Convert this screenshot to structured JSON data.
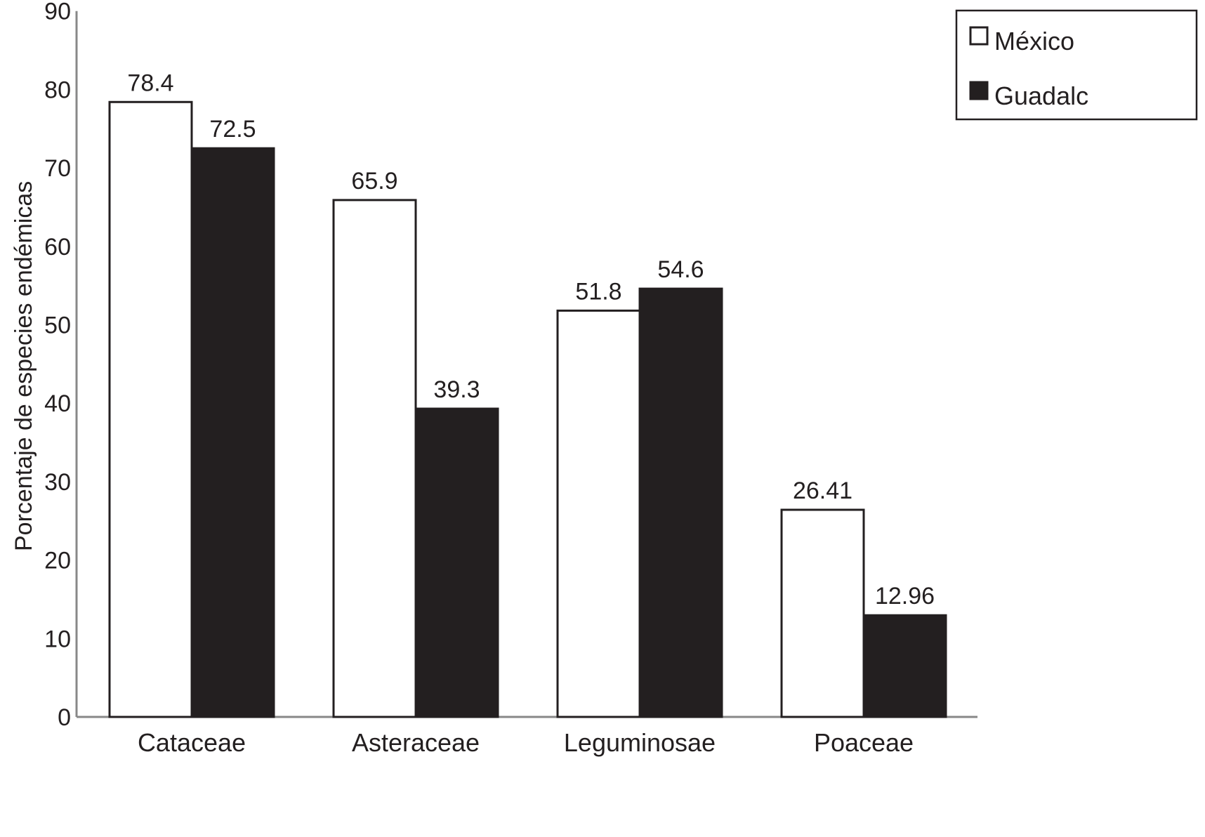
{
  "chart_data": {
    "type": "bar",
    "title": "",
    "xlabel": "",
    "ylabel": "Porcentaje de especies endémicas",
    "ylim": [
      0,
      90
    ],
    "yticks": [
      0,
      10,
      20,
      30,
      40,
      50,
      60,
      70,
      80,
      90
    ],
    "categories": [
      "Cataceae",
      "Asteraceae",
      "Leguminosae",
      "Poaceae"
    ],
    "series": [
      {
        "name": "México",
        "values": [
          78.4,
          65.9,
          51.8,
          26.41
        ],
        "labels": [
          "78.4",
          "65.9",
          "51.8",
          "26.41"
        ],
        "color": "#ffffff"
      },
      {
        "name": "Guadalc",
        "values": [
          72.5,
          39.3,
          54.6,
          12.96
        ],
        "labels": [
          "72.5",
          "39.3",
          "54.6",
          "12.96"
        ],
        "color": "#231f20"
      }
    ],
    "legend_position": "top-right",
    "grid": false
  }
}
